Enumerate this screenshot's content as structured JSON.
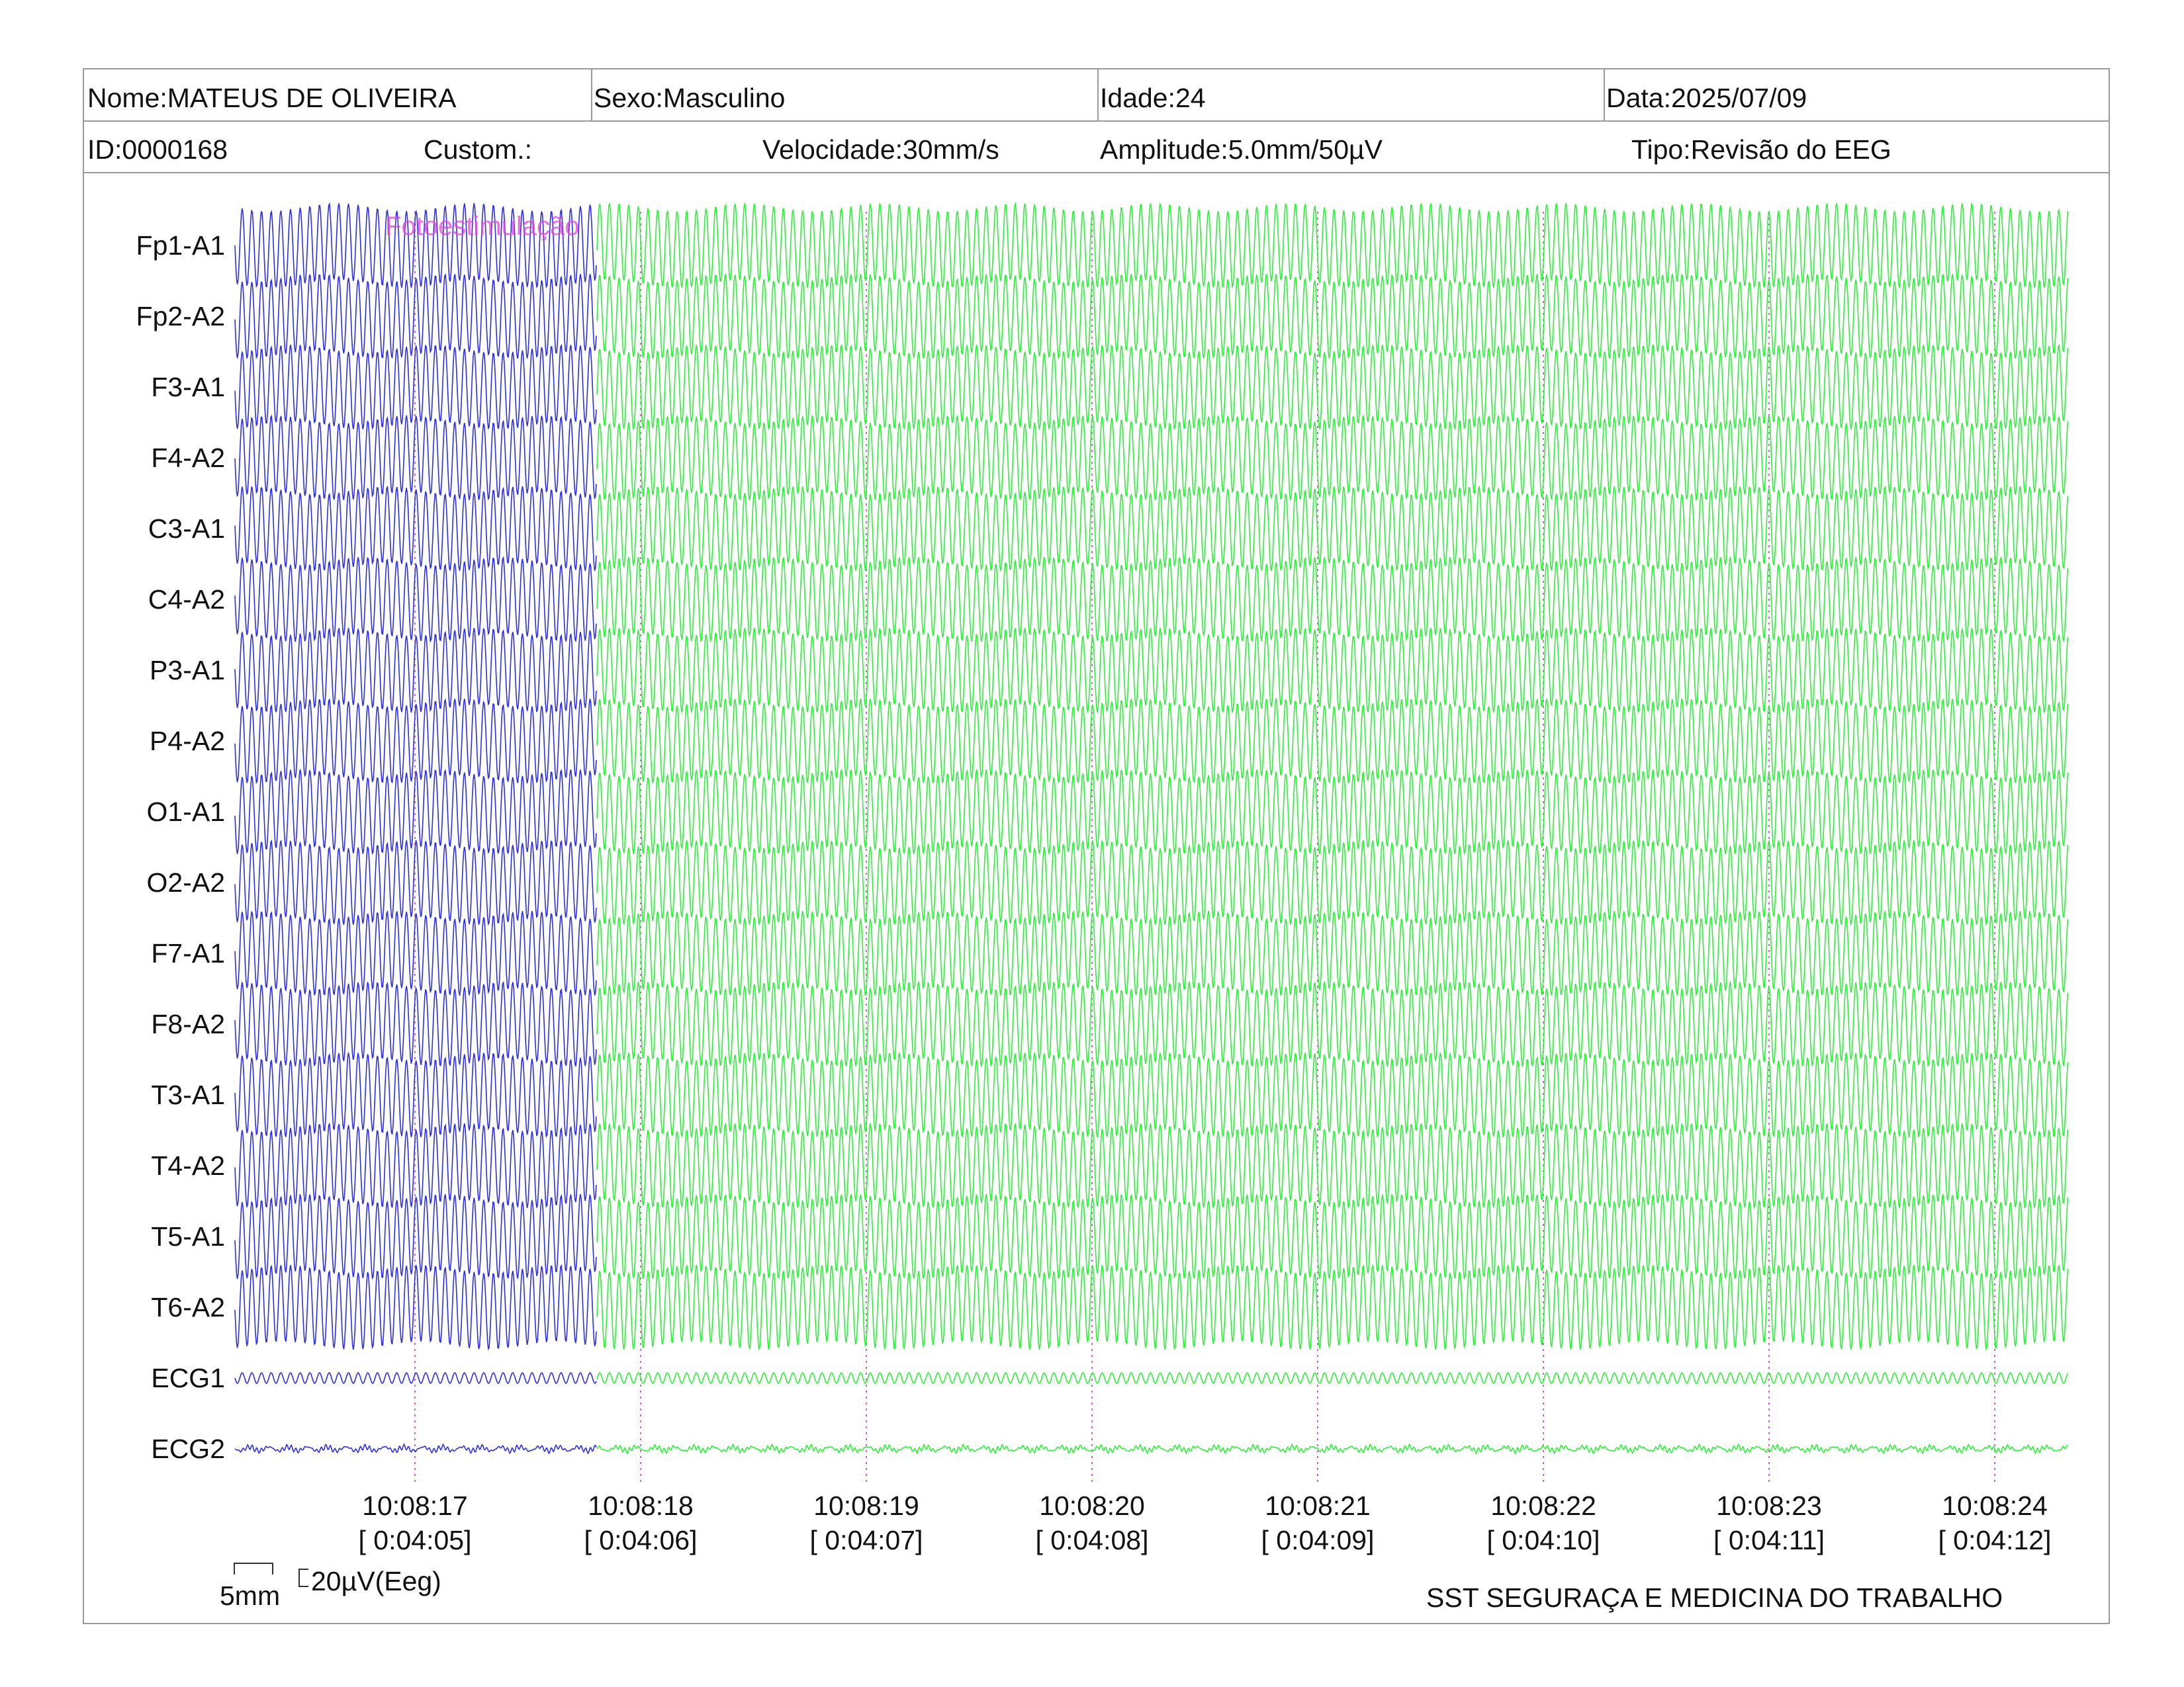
{
  "header": {
    "nome": "Nome:MATEUS DE OLIVEIRA",
    "sexo": "Sexo:Masculino",
    "idade": "Idade:24",
    "data": "Data:2025/07/09",
    "id": "ID:0000168",
    "custom": "Custom.:",
    "velocidade": "Velocidade:30mm/s",
    "amplitude": "Amplitude:5.0mm/50µV",
    "tipo": "Tipo:Revisão do EEG"
  },
  "scale_bar": {
    "time_label": "5mm",
    "amp_label": "20µV(Eeg)"
  },
  "footer": {
    "clinic": "SST SEGURAÇA E MEDICINA DO TRABALHO"
  },
  "colors": {
    "segment_before": "#2e2ee0",
    "segment_after": "#2ef03a",
    "event_marker": "#e040d8",
    "time_gridline": "#d060d0",
    "border": "#9a9a9a"
  },
  "chart_data": {
    "type": "line",
    "annotation": "Fotoestimulação",
    "channels": [
      "Fp1-A1",
      "Fp2-A2",
      "F3-A1",
      "F4-A2",
      "C3-A1",
      "C4-A2",
      "P3-A1",
      "P4-A2",
      "O1-A1",
      "O2-A2",
      "F7-A1",
      "F8-A2",
      "T3-A1",
      "T4-A2",
      "T5-A1",
      "T6-A2",
      "ECG1",
      "ECG2"
    ],
    "time_ticks": [
      {
        "clock": "10:08:17",
        "elapsed": "[ 0:04:05]"
      },
      {
        "clock": "10:08:18",
        "elapsed": "[ 0:04:06]"
      },
      {
        "clock": "10:08:19",
        "elapsed": "[ 0:04:07]"
      },
      {
        "clock": "10:08:20",
        "elapsed": "[ 0:04:08]"
      },
      {
        "clock": "10:08:21",
        "elapsed": "[ 0:04:09]"
      },
      {
        "clock": "10:08:22",
        "elapsed": "[ 0:04:10]"
      },
      {
        "clock": "10:08:23",
        "elapsed": "[ 0:04:11]"
      },
      {
        "clock": "10:08:24",
        "elapsed": "[ 0:04:12]"
      }
    ],
    "eeg_waveform": "sinusoidal",
    "ecg1_waveform": "low-amplitude sinusoidal",
    "ecg2_waveform": "near-flat",
    "grid": "vertical dotted lines at each second",
    "legend": "none"
  }
}
